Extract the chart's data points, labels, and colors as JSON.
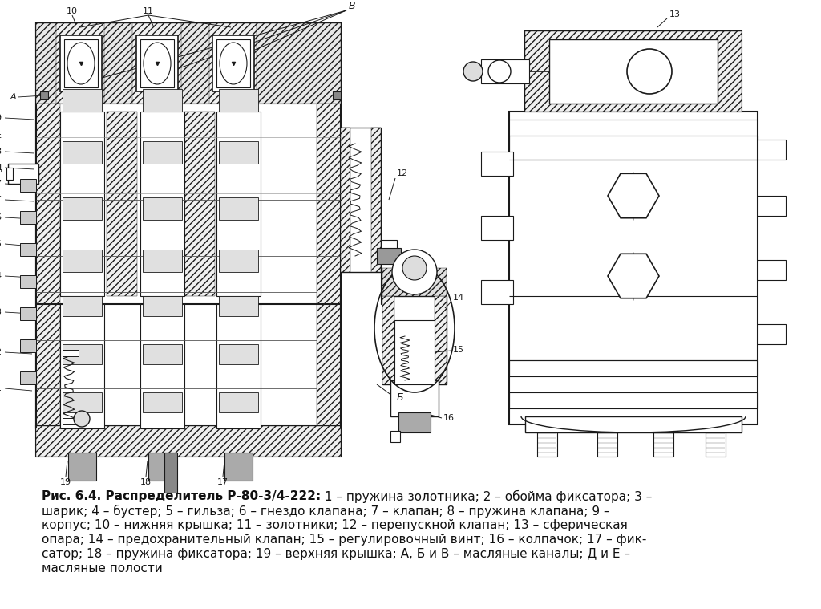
{
  "background_color": "#ffffff",
  "figure_width": 10.24,
  "figure_height": 7.59,
  "dpi": 100,
  "caption_line1_bold": "Рис. 6.4. Распределитель Р-80-3/4-222:",
  "caption_line1_normal": " 1 – пружина золотника; 2 – обойма фиксатора; 3 –",
  "caption_line2": "шарик; 4 – бустер; 5 – гильза; 6 – гнездо клапана; 7 – клапан; 8 – пружина клапана; 9 –",
  "caption_line3": "корпус; 10 – нижняя крышка; 11 – золотники; 12 – перепускной клапан; 13 – сферическая",
  "caption_line4": "опара; 14 – предохранительный клапан; 15 – регулировочный винт; 16 – колпачок; 17 – фик-",
  "caption_line5": "сатор; 18 – пружина фиксатора; 19 – верхняя крышка; А, Б и В – масляные каналы; Д и Е –",
  "caption_line6": "масляные полости",
  "lc": "#1a1a1a",
  "hatch_color": "#333333"
}
